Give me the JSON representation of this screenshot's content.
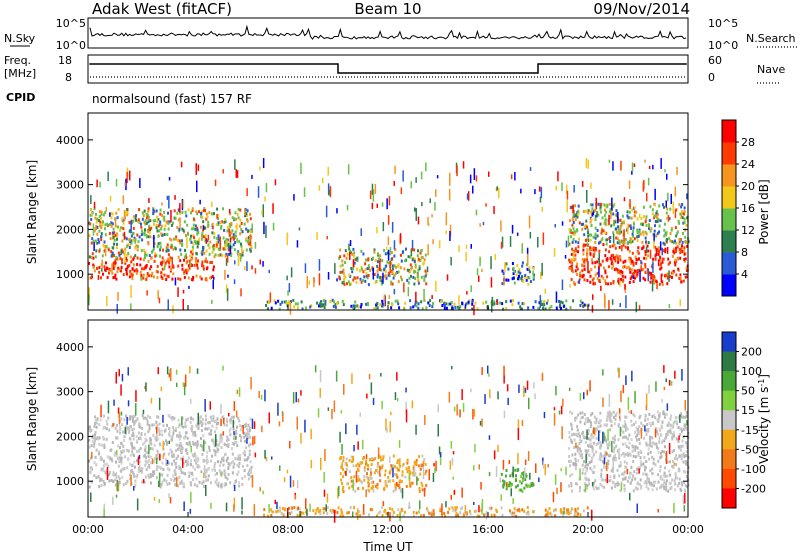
{
  "header": {
    "station": "Adak West (fitACF)",
    "beam": "Beam 10",
    "date": "09/Nov/2014"
  },
  "top_panels": {
    "nsky": {
      "left_label": "N.Sky",
      "right_label": "N.Search",
      "left_ticks": [
        "10^5",
        "10^0"
      ],
      "right_ticks": [
        "10^5",
        "10^0"
      ]
    },
    "freq": {
      "left_label_1": "Freq.",
      "left_label_2": "[MHz]",
      "left_ticks": [
        "18",
        "8"
      ],
      "right_ticks": [
        "60",
        "0"
      ],
      "right_label": "Nave",
      "cpid_label": "CPID",
      "cpid_text": "normalsound (fast) 157 RF"
    }
  },
  "chart_data": [
    {
      "type": "heatmap",
      "title": "",
      "xlabel": "",
      "ylabel": "Slant Range [km]",
      "ylim": [
        200,
        4600
      ],
      "yticks": [
        1000,
        2000,
        3000,
        4000
      ],
      "colorbar": {
        "label": "Power [dB]",
        "range": [
          0,
          32
        ],
        "ticks": [
          4,
          8,
          12,
          16,
          20,
          24,
          28
        ],
        "colors": [
          "#0000ff",
          "#2a5bd6",
          "#2e7f50",
          "#66c24a",
          "#f2c81a",
          "#f59520",
          "#ff3a00",
          "#ff0000"
        ]
      },
      "echo_regions": [
        {
          "t0": 0.0,
          "t1": 5.0,
          "r0": 900,
          "r1": 1400,
          "level": "high"
        },
        {
          "t0": 0.0,
          "t1": 6.5,
          "r0": 1400,
          "r1": 2500,
          "level": "medium"
        },
        {
          "t0": 10.0,
          "t1": 13.5,
          "r0": 800,
          "r1": 1600,
          "level": "medium"
        },
        {
          "t0": 16.5,
          "t1": 17.8,
          "r0": 800,
          "r1": 1300,
          "level": "low"
        },
        {
          "t0": 19.2,
          "t1": 24.0,
          "r0": 800,
          "r1": 1700,
          "level": "high"
        },
        {
          "t0": 19.2,
          "t1": 24.0,
          "r0": 1700,
          "r1": 2600,
          "level": "medium"
        },
        {
          "t0": 7.0,
          "t1": 20.0,
          "r0": 250,
          "r1": 450,
          "level": "low"
        }
      ]
    },
    {
      "type": "heatmap",
      "title": "",
      "xlabel": "Time UT",
      "ylabel": "Slant Range [km]",
      "ylim": [
        200,
        4600
      ],
      "yticks": [
        1000,
        2000,
        3000,
        4000
      ],
      "xticks": [
        "00:00",
        "04:00",
        "08:00",
        "12:00",
        "16:00",
        "20:00",
        "00:00"
      ],
      "colorbar": {
        "label": "Velocity [m s^-1]",
        "ticks": [
          "200",
          "100",
          "50",
          "15",
          "-15",
          "-50",
          "-100",
          "-200"
        ],
        "colors": [
          "#1a3ccc",
          "#2d7a44",
          "#4aa838",
          "#80d040",
          "#c8c8c8",
          "#f2a81a",
          "#f27a1a",
          "#ff4a00",
          "#ff0000"
        ]
      },
      "echo_regions": [
        {
          "t0": 0.0,
          "t1": 6.5,
          "r0": 900,
          "r1": 2500,
          "velocity": "ground-scatter"
        },
        {
          "t0": 10.0,
          "t1": 13.5,
          "r0": 800,
          "r1": 1600,
          "velocity": "-15 to -50"
        },
        {
          "t0": 16.5,
          "t1": 17.8,
          "r0": 800,
          "r1": 1300,
          "velocity": "15 to 50"
        },
        {
          "t0": 19.2,
          "t1": 24.0,
          "r0": 800,
          "r1": 2600,
          "velocity": "ground-scatter"
        },
        {
          "t0": 7.0,
          "t1": 20.0,
          "r0": 250,
          "r1": 450,
          "velocity": "-15 to -50"
        }
      ]
    }
  ]
}
